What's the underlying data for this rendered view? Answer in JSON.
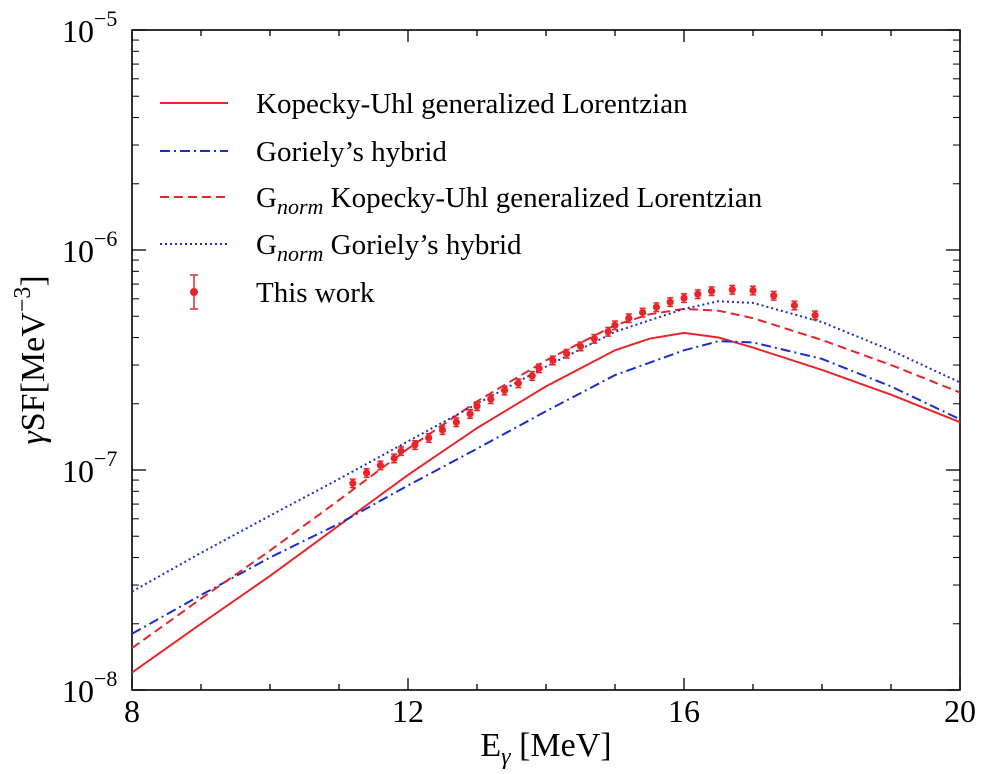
{
  "chart_data": {
    "type": "line",
    "title": "",
    "xlabel": {
      "main": "E",
      "sub": "γ",
      "unit": " [MeV]"
    },
    "ylabel": {
      "prefix": "γ",
      "main": "SF[MeV",
      "sup": "−3",
      "end": "]"
    },
    "xlim": [
      8,
      20
    ],
    "ylim_log10": [
      -8,
      -5
    ],
    "yscale": "log",
    "grid": false,
    "legend_position": "top-left",
    "x_ticks": [
      {
        "value": 8,
        "label": "8"
      },
      {
        "value": 12,
        "label": "12"
      },
      {
        "value": 16,
        "label": "16"
      },
      {
        "value": 20,
        "label": "20"
      }
    ],
    "y_ticks": [
      {
        "exp": -8,
        "base": "10",
        "sup": "−8"
      },
      {
        "exp": -7,
        "base": "10",
        "sup": "−7"
      },
      {
        "exp": -6,
        "base": "10",
        "sup": "−6"
      },
      {
        "exp": -5,
        "base": "10",
        "sup": "−5"
      }
    ],
    "series": [
      {
        "name": "Kopecky-Uhl generalized Lorentzian",
        "legend": {
          "pre": "",
          "sub": "",
          "post": "Kopecky-Uhl generalized Lorentzian"
        },
        "color": "#e8262a",
        "style": "solid",
        "x": [
          8,
          9,
          10,
          11,
          12,
          13,
          14,
          15,
          15.5,
          16,
          16.5,
          17,
          18,
          19,
          20
        ],
        "y": [
          1.2e-08,
          2e-08,
          3.3e-08,
          5.6e-08,
          9.5e-08,
          1.55e-07,
          2.4e-07,
          3.5e-07,
          3.95e-07,
          4.2e-07,
          4e-07,
          3.6e-07,
          2.85e-07,
          2.2e-07,
          1.65e-07
        ]
      },
      {
        "name": "Goriely's hybrid",
        "legend": {
          "pre": "",
          "sub": "",
          "post": "Goriely’s hybrid"
        },
        "color": "#1a2fc9",
        "style": "dashdot",
        "x": [
          8,
          9,
          10,
          11,
          12,
          13,
          14,
          15,
          16,
          16.5,
          17,
          18,
          19,
          20
        ],
        "y": [
          1.8e-08,
          2.7e-08,
          4e-08,
          5.7e-08,
          8.5e-08,
          1.25e-07,
          1.85e-07,
          2.7e-07,
          3.5e-07,
          3.85e-07,
          3.8e-07,
          3.2e-07,
          2.4e-07,
          1.7e-07
        ]
      },
      {
        "name": "G_norm Kopecky-Uhl generalized Lorentzian",
        "legend": {
          "pre": "G",
          "sub": "norm",
          "post": " Kopecky-Uhl generalized Lorentzian"
        },
        "color": "#e8262a",
        "style": "dashed",
        "x": [
          8,
          9,
          10,
          11,
          12,
          13,
          14,
          15,
          15.5,
          16,
          16.5,
          17,
          18,
          19,
          20
        ],
        "y": [
          1.55e-08,
          2.6e-08,
          4.3e-08,
          7.3e-08,
          1.25e-07,
          2.05e-07,
          3.15e-07,
          4.55e-07,
          5.1e-07,
          5.4e-07,
          5.3e-07,
          4.9e-07,
          3.9e-07,
          3e-07,
          2.25e-07
        ]
      },
      {
        "name": "G_norm Goriely's hybrid",
        "legend": {
          "pre": "G",
          "sub": "norm",
          "post": " Goriely’s hybrid"
        },
        "color": "#1a2fc9",
        "style": "dotted",
        "x": [
          8,
          9,
          10,
          11,
          12,
          13,
          14,
          15,
          16,
          16.5,
          17,
          18,
          19,
          20
        ],
        "y": [
          2.8e-08,
          4.2e-08,
          6.2e-08,
          9.1e-08,
          1.35e-07,
          2e-07,
          2.95e-07,
          4.25e-07,
          5.4e-07,
          5.85e-07,
          5.75e-07,
          4.7e-07,
          3.5e-07,
          2.5e-07
        ]
      }
    ],
    "measurements": {
      "name": "This work",
      "legend": {
        "pre": "",
        "sub": "",
        "post": "This work"
      },
      "color": "#e8262a",
      "x": [
        11.2,
        11.4,
        11.6,
        11.8,
        11.9,
        12.1,
        12.3,
        12.5,
        12.7,
        12.9,
        13.0,
        13.2,
        13.4,
        13.6,
        13.8,
        13.9,
        14.1,
        14.3,
        14.5,
        14.7,
        14.9,
        15.0,
        15.2,
        15.4,
        15.6,
        15.8,
        16.0,
        16.2,
        16.4,
        16.7,
        17.0,
        17.3,
        17.6,
        17.9
      ],
      "y": [
        8.7e-08,
        9.7e-08,
        1.05e-07,
        1.13e-07,
        1.22e-07,
        1.3e-07,
        1.4e-07,
        1.52e-07,
        1.65e-07,
        1.8e-07,
        1.95e-07,
        2.1e-07,
        2.3e-07,
        2.48e-07,
        2.68e-07,
        2.9e-07,
        3.15e-07,
        3.38e-07,
        3.65e-07,
        3.95e-07,
        4.25e-07,
        4.55e-07,
        4.9e-07,
        5.2e-07,
        5.5e-07,
        5.8e-07,
        6.05e-07,
        6.3e-07,
        6.5e-07,
        6.6e-07,
        6.55e-07,
        6.2e-07,
        5.6e-07,
        5.05e-07
      ],
      "err": [
        0.045,
        0.045,
        0.045,
        0.045,
        0.045,
        0.045,
        0.045,
        0.045,
        0.045,
        0.045,
        0.045,
        0.045,
        0.045,
        0.045,
        0.045,
        0.045,
        0.045,
        0.045,
        0.045,
        0.045,
        0.045,
        0.045,
        0.045,
        0.045,
        0.045,
        0.045,
        0.045,
        0.045,
        0.045,
        0.045,
        0.045,
        0.045,
        0.045,
        0.045
      ]
    }
  }
}
